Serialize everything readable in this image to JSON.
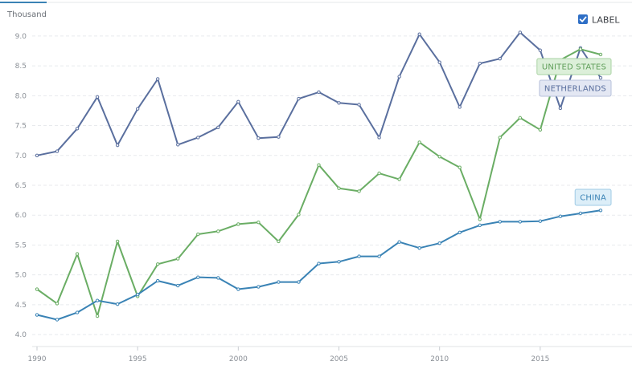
{
  "chart_data": {
    "type": "line",
    "unit_label": "Thousand",
    "legend_toggle": {
      "label": "LABEL",
      "checked": true,
      "color": "#2f6fc6"
    },
    "x": [
      1990,
      1991,
      1992,
      1993,
      1994,
      1995,
      1996,
      1997,
      1998,
      1999,
      2000,
      2001,
      2002,
      2003,
      2004,
      2005,
      2006,
      2007,
      2008,
      2009,
      2010,
      2011,
      2012,
      2013,
      2014,
      2015,
      2016,
      2017,
      2018
    ],
    "x_ticks": [
      "1990",
      "1995",
      "2000",
      "2005",
      "2010",
      "2015"
    ],
    "y_ticks": [
      "4.0",
      "4.5",
      "5.0",
      "5.5",
      "6.0",
      "6.5",
      "7.0",
      "7.5",
      "8.0",
      "8.5",
      "9.0"
    ],
    "xlim": [
      1990,
      2019
    ],
    "ylim": [
      3.8,
      9.2
    ],
    "grid": true,
    "series": [
      {
        "name": "NETHERLANDS",
        "color": "#5a6f9e",
        "tag_bg": "#e3e7f3",
        "tag_border": "#b7c0db",
        "tag_text": "#5a6f9e",
        "values": [
          7.0,
          7.07,
          7.45,
          7.98,
          7.17,
          7.78,
          8.28,
          7.18,
          7.3,
          7.47,
          7.9,
          7.29,
          7.31,
          7.95,
          8.06,
          7.88,
          7.85,
          7.3,
          8.32,
          9.03,
          8.56,
          7.81,
          8.54,
          8.62,
          9.06,
          8.76,
          7.79,
          8.8,
          8.3
        ]
      },
      {
        "name": "UNITED STATES",
        "color": "#6aad64",
        "tag_bg": "#dcefd9",
        "tag_border": "#a9d3a3",
        "tag_text": "#5f9e59",
        "values": [
          4.76,
          4.52,
          5.35,
          4.31,
          5.56,
          4.64,
          5.18,
          5.27,
          5.68,
          5.73,
          5.85,
          5.88,
          5.56,
          6.01,
          6.84,
          6.45,
          6.4,
          6.7,
          6.6,
          7.22,
          6.98,
          6.8,
          5.93,
          7.3,
          7.63,
          7.43,
          8.6,
          8.78,
          8.69
        ]
      },
      {
        "name": "CHINA",
        "color": "#3a83b5",
        "tag_bg": "#dceef8",
        "tag_border": "#9fcbe4",
        "tag_text": "#3a83b5",
        "values": [
          4.33,
          4.25,
          4.37,
          4.57,
          4.51,
          4.67,
          4.9,
          4.82,
          4.96,
          4.95,
          4.76,
          4.8,
          4.88,
          4.88,
          5.19,
          5.22,
          5.31,
          5.31,
          5.55,
          5.45,
          5.53,
          5.71,
          5.83,
          5.89,
          5.89,
          5.9,
          5.98,
          6.03,
          6.08
        ]
      }
    ]
  }
}
